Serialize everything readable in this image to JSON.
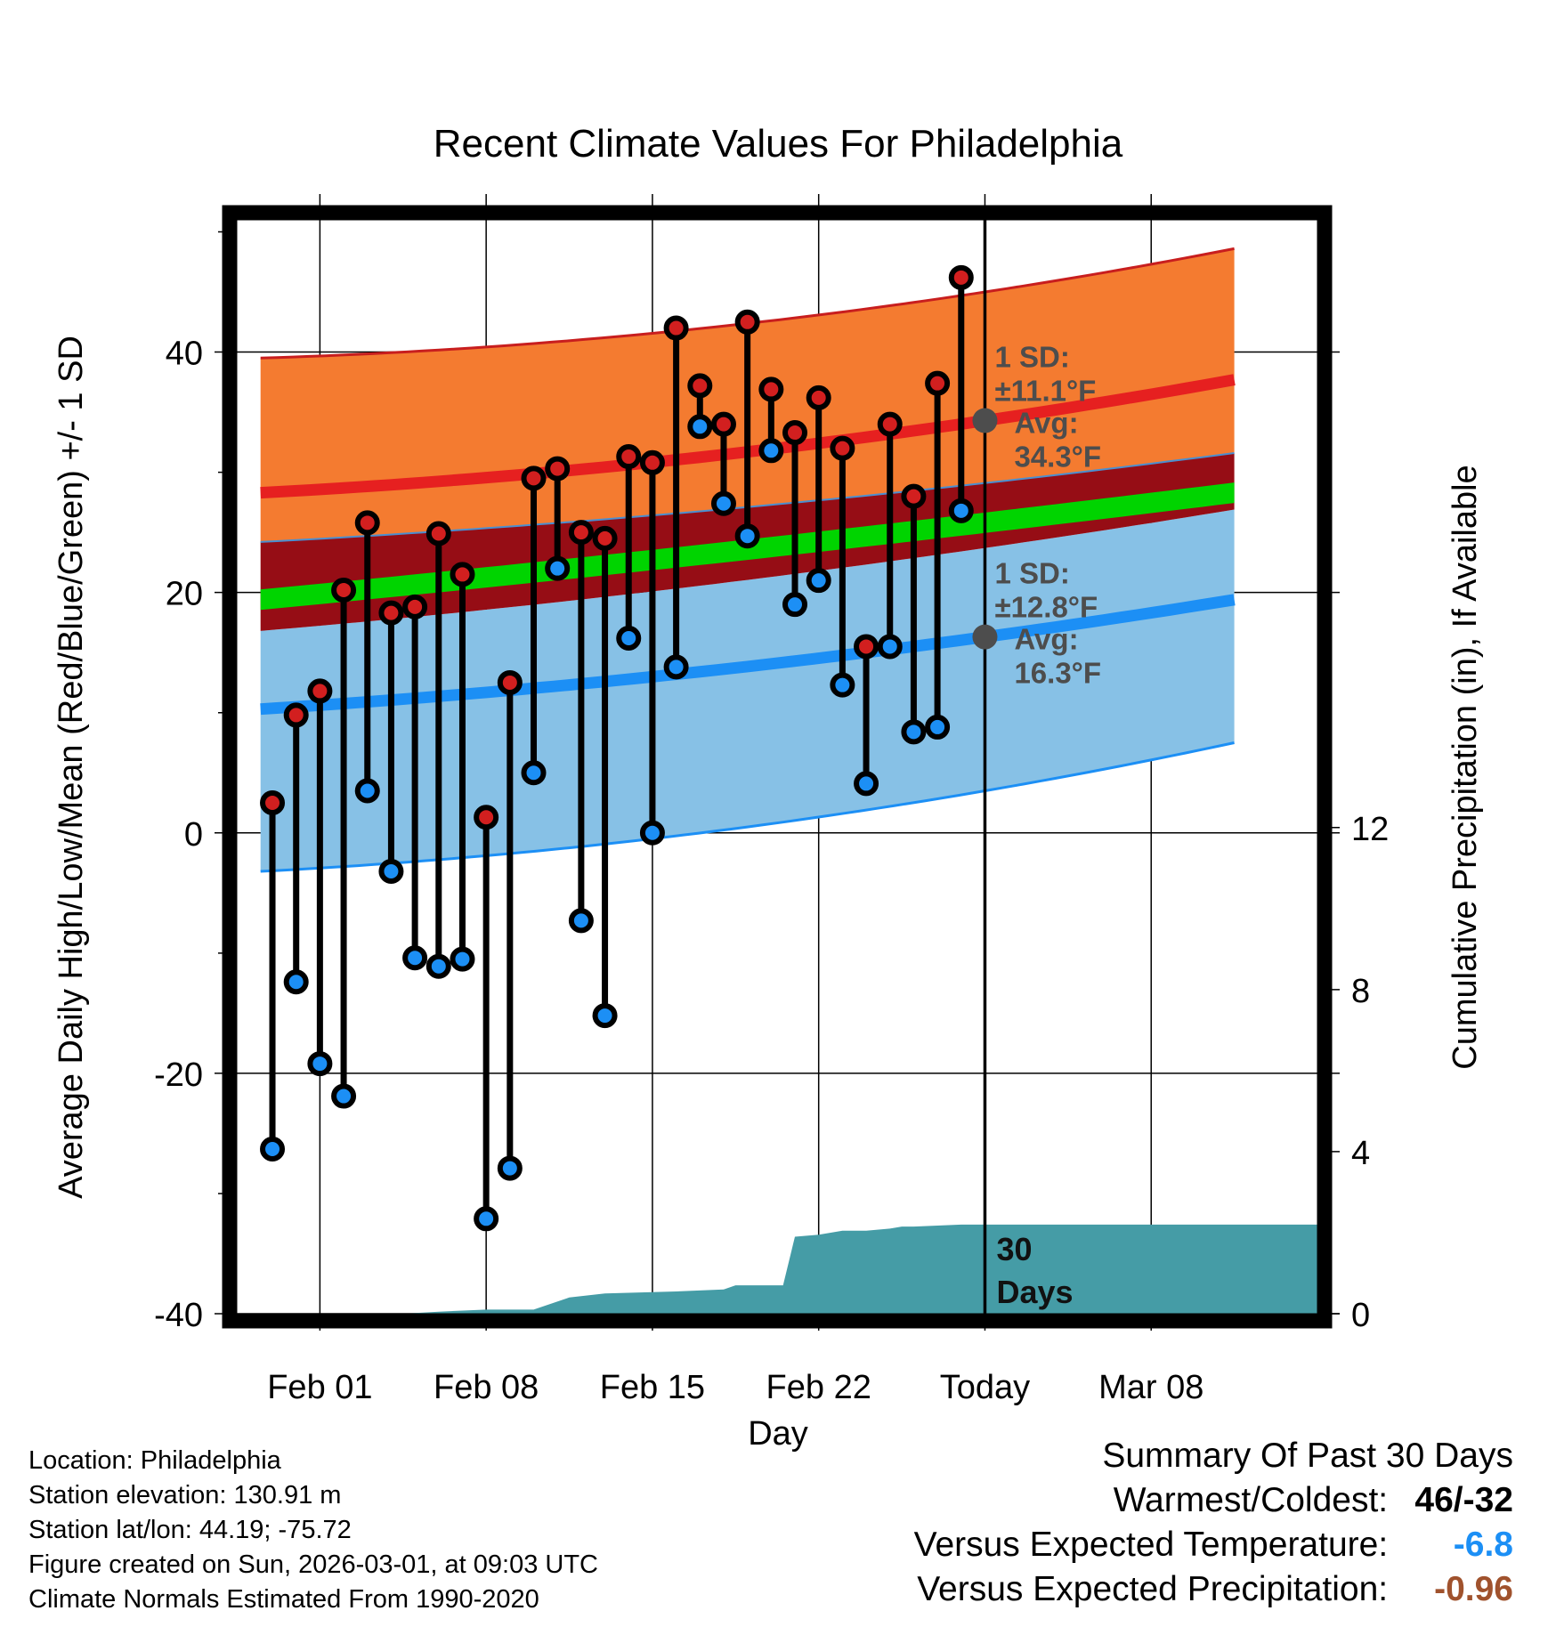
{
  "chart_data": {
    "type": "line",
    "title": "Recent Climate Values For Philadelphia",
    "xlabel": "Day",
    "ylabel": "Average Daily High/Low/Mean (Red/Blue/Green) +/- 1 SD",
    "ylabel_right": "Cumulative Precipitation (in), If Available",
    "xlim": [
      -3.5,
      42
    ],
    "ylim": [
      -40,
      51
    ],
    "y_ticks": [
      -40,
      -20,
      0,
      20,
      40
    ],
    "y_tick_labels": [
      "-40",
      "-20",
      "0",
      "20",
      "40"
    ],
    "y2_range_in": [
      0,
      27
    ],
    "y2_ticks": [
      0,
      4,
      8,
      12
    ],
    "y2_tick_labels": [
      "0",
      "4",
      "8",
      "12"
    ],
    "x_ticks": [
      0,
      7,
      14,
      21,
      28,
      35
    ],
    "x_tick_labels": [
      "Feb 01",
      "Feb 08",
      "Feb 15",
      "Feb 22",
      "Today",
      "Mar 08"
    ],
    "today_index": 28,
    "days": [
      -2,
      -1,
      0,
      1,
      2,
      3,
      4,
      5,
      6,
      7,
      8,
      9,
      10,
      11,
      12,
      13,
      14,
      15,
      16,
      17,
      18,
      19,
      20,
      21,
      22,
      23,
      24,
      25,
      26,
      27
    ],
    "daily_high": [
      2.5,
      9.8,
      11.8,
      20.2,
      25.8,
      18.3,
      18.8,
      24.9,
      21.5,
      1.3,
      12.5,
      29.5,
      30.3,
      25.0,
      24.5,
      31.3,
      30.8,
      42.0,
      37.2,
      34.0,
      42.5,
      36.9,
      33.3,
      36.2,
      32.0,
      15.5,
      34.0,
      28.0,
      37.4,
      46.2
    ],
    "daily_low": [
      -26.3,
      -12.4,
      -19.2,
      -21.9,
      3.5,
      -3.2,
      -10.4,
      -11.1,
      -10.5,
      -32.1,
      -27.9,
      5.0,
      22.0,
      -7.3,
      -15.2,
      16.2,
      0.0,
      13.8,
      33.8,
      27.4,
      24.7,
      31.8,
      19.0,
      21.0,
      12.3,
      4.1,
      15.5,
      8.4,
      8.8,
      26.8
    ],
    "normal_x": [
      -2.5,
      28,
      38.5
    ],
    "normal_high": [
      28.3,
      34.3,
      37.7
    ],
    "normal_high_sd_upper": [
      39.5,
      45.0,
      48.6
    ],
    "normal_high_sd_lower": [
      24.2,
      29.1,
      31.6
    ],
    "normal_mean": [
      19.4,
      25.8,
      28.3
    ],
    "normal_low": [
      10.3,
      16.3,
      19.4
    ],
    "normal_low_sd_upper": [
      16.8,
      23.7,
      26.9
    ],
    "normal_low_sd_lower": [
      -3.2,
      3.5,
      7.5
    ],
    "high_sd_label": "1 SD:",
    "high_sd_value": "±11.1°F",
    "high_avg_label": "Avg:",
    "high_avg_value": "34.3°F",
    "low_sd_label": "1 SD:",
    "low_sd_value": "±12.8°F",
    "low_avg_label": "Avg:",
    "low_avg_value": "16.3°F",
    "precip_days": [
      -3.5,
      2.5,
      3.5,
      5.0,
      7.0,
      9.0,
      10.5,
      12.0,
      15.0,
      17.0,
      17.5,
      19.5,
      20.0,
      21.0,
      22.0,
      22.5,
      23.0,
      24.0,
      24.5,
      25.0,
      27.0,
      28.0,
      42.0
    ],
    "precip_cum": [
      0,
      0,
      0,
      0.05,
      0.1,
      0.1,
      0.4,
      0.5,
      0.55,
      0.6,
      0.7,
      0.7,
      1.9,
      1.95,
      2.05,
      2.05,
      2.05,
      2.1,
      2.15,
      2.15,
      2.2,
      2.2,
      2.2
    ],
    "precip_label_line1": "30",
    "precip_label_line2": "Days",
    "colors": {
      "high_sd_band": "#f47b30",
      "high_mean": "#e62020",
      "overlap_band": "#960d15",
      "mean_band": "#00d400",
      "low_sd_band": "#87c1e6",
      "low_mean": "#1c8ff5",
      "precip": "#459ca6",
      "high_marker": "#d21f1f",
      "low_marker": "#1c8ff5",
      "avg_marker": "#4d4d4d"
    }
  },
  "meta": {
    "location": "Location: Philadelphia",
    "elevation": "Station elevation: 130.91 m",
    "latlon": "Station lat/lon: 44.19; -75.72",
    "created": "Figure created on Sun, 2026-03-01, at 09:03 UTC",
    "normals": "Climate Normals Estimated From 1990-2020"
  },
  "summary": {
    "title": "Summary Of Past 30 Days",
    "warm_cold_label": "Warmest/Coldest:",
    "warm_cold_value": "46/-32",
    "temp_label": "Versus Expected Temperature:",
    "temp_value": "-6.8",
    "temp_color": "#1c8ff5",
    "precip_label": "Versus Expected Precipitation:",
    "precip_value": "-0.96",
    "precip_color": "#a0522d"
  }
}
